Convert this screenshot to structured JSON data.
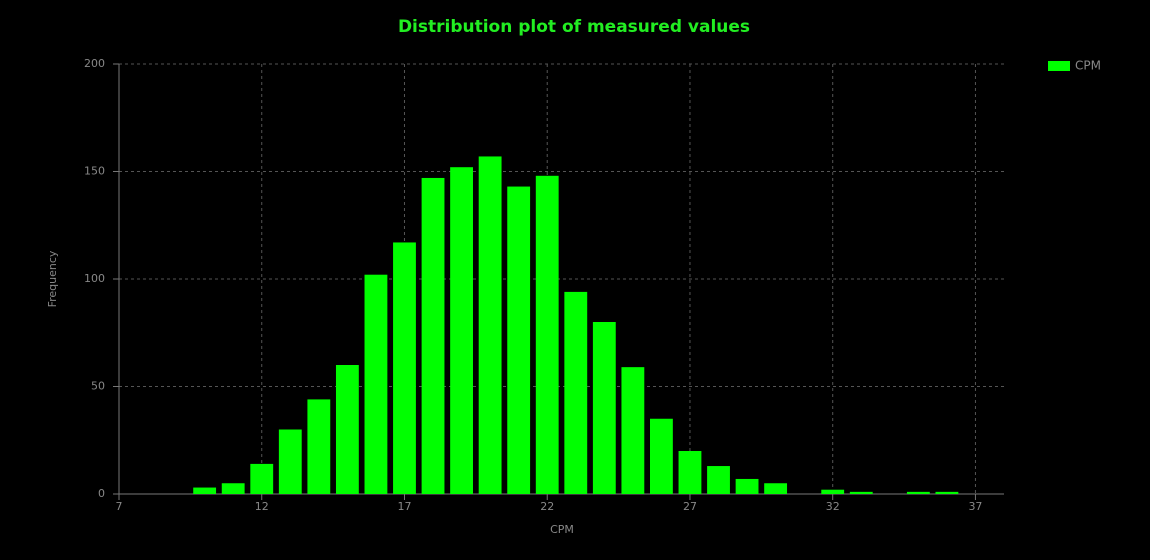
{
  "chart_data": {
    "type": "histogram",
    "title": "Distribution plot of measured values",
    "x_label": "CPM",
    "y_label": "Frequency",
    "bins": [
      9.5,
      10.5,
      11.5,
      12.5,
      13.5,
      14.5,
      15.5,
      16.5,
      17.5,
      18.5,
      19.5,
      20.5,
      21.5,
      22.5,
      23.5,
      24.5,
      25.5,
      26.5,
      27.5,
      28.5,
      29.5,
      30.5,
      31.5,
      32.5,
      33.5,
      34.5,
      35.5,
      36.5
    ],
    "series": [
      {
        "name": "CPM",
        "color": "#00ff00",
        "values": [
          3,
          5,
          14,
          30,
          44,
          60,
          102,
          117,
          147,
          152,
          157,
          143,
          148,
          94,
          80,
          59,
          35,
          20,
          13,
          7,
          5,
          0,
          2,
          1,
          0,
          1,
          1
        ]
      }
    ],
    "xlim": [
      7,
      38
    ],
    "xticks": [
      7,
      12,
      17,
      22,
      27,
      32,
      37
    ],
    "ylim": [
      0,
      200
    ],
    "yticks": [
      0,
      50,
      100,
      150,
      200
    ],
    "grid": true,
    "legend": "top-right"
  }
}
